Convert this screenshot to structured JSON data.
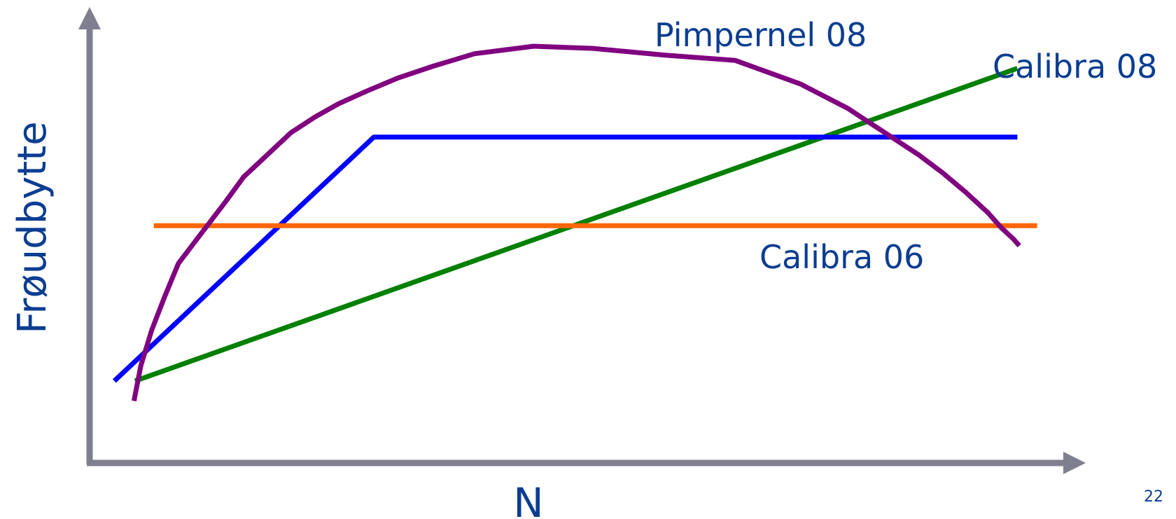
{
  "chart_data": {
    "type": "line",
    "title": "",
    "xlabel": "N",
    "ylabel": "Frøudbytte",
    "grid": false,
    "axes_ticks": false,
    "series": [
      {
        "name": "Pimpernel 08",
        "color": "#800080",
        "x": [
          4.5,
          5.2,
          6.3,
          7.6,
          9.0,
          11.4,
          13.8,
          15.6,
          18.0,
          20.4,
          22.8,
          25.2,
          28.2,
          31.2,
          34.8,
          39.0,
          45.0,
          51.0,
          58.2,
          65.4,
          72.0,
          76.8,
          79.2,
          81.6,
          84.0,
          86.4,
          88.8,
          91.0,
          92.4,
          93.6,
          94.2
        ],
        "y": [
          14.0,
          22.0,
          30.0,
          37.5,
          45.0,
          52.0,
          59.0,
          64.5,
          69.5,
          74.5,
          78.0,
          81.0,
          84.0,
          86.8,
          89.5,
          92.3,
          94.0,
          93.5,
          92.0,
          90.8,
          85.5,
          80.0,
          76.5,
          73.0,
          69.5,
          65.5,
          61.0,
          56.5,
          53.0,
          50.5,
          49.0
        ]
      },
      {
        "name": "",
        "color": "#0000ff",
        "x": [
          2.5,
          28.8,
          94.0
        ],
        "y": [
          18.5,
          73.5,
          73.5
        ]
      },
      {
        "name": "Calibra 06",
        "color": "#ff6600",
        "x": [
          6.5,
          96.0
        ],
        "y": [
          53.5,
          53.5
        ]
      },
      {
        "name": "Calibra 08",
        "color": "#008000",
        "x": [
          4.6,
          94.0
        ],
        "y": [
          18.5,
          89.0
        ]
      }
    ],
    "annotations": [
      {
        "text": "Pimpernel 08",
        "series": "Pimpernel 08"
      },
      {
        "text": "Calibra 08",
        "series": "Calibra 08"
      },
      {
        "text": "Calibra 06",
        "series": "Calibra 06"
      }
    ],
    "xlim": [
      0,
      100
    ],
    "ylim": [
      0,
      100
    ]
  },
  "page_number": "22",
  "colors": {
    "axis": "#7f7f8f",
    "text": "#0b3d91"
  }
}
